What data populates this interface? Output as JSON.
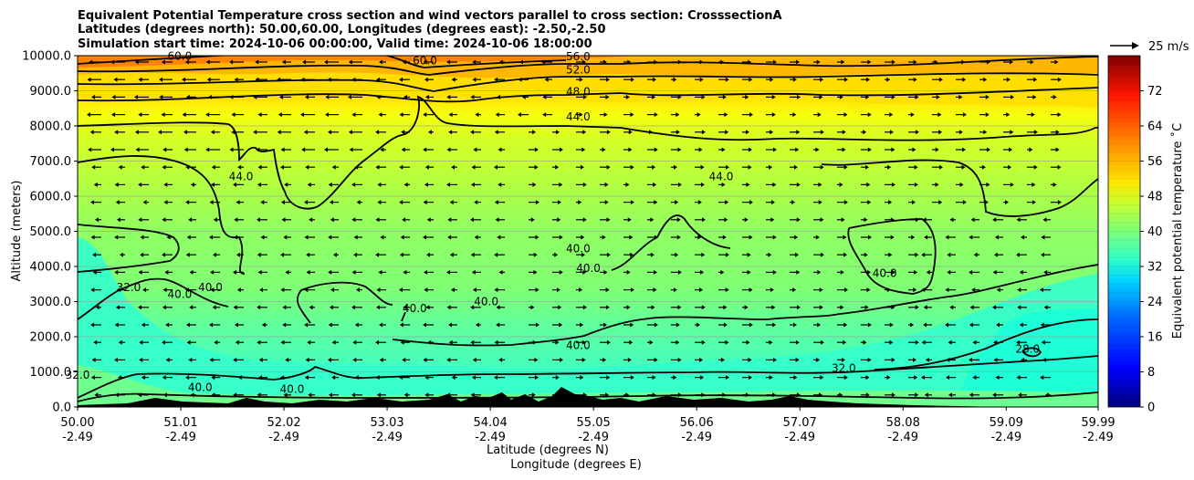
{
  "chart_data": {
    "type": "heatmap",
    "title_lines": [
      "Equivalent Potential Temperature cross section and wind vectors parallel to cross section: CrosssectionA",
      "Latitudes (degrees north): 50.00,60.00, Longitudes (degrees east): -2.50,-2.50",
      "Simulation start time: 2024-10-06 00:00:00, Valid time: 2024-10-06 18:00:00"
    ],
    "ylabel": "Altitude (meters)",
    "xlabel_line1": "Latitude (degrees N)",
    "xlabel_line2": "Longitude (degrees E)",
    "x_ticks": [
      {
        "lat": "50.00",
        "lon": "-2.49"
      },
      {
        "lat": "51.01",
        "lon": "-2.49"
      },
      {
        "lat": "52.02",
        "lon": "-2.49"
      },
      {
        "lat": "53.03",
        "lon": "-2.49"
      },
      {
        "lat": "54.04",
        "lon": "-2.49"
      },
      {
        "lat": "55.05",
        "lon": "-2.49"
      },
      {
        "lat": "56.06",
        "lon": "-2.49"
      },
      {
        "lat": "57.07",
        "lon": "-2.49"
      },
      {
        "lat": "58.08",
        "lon": "-2.49"
      },
      {
        "lat": "59.09",
        "lon": "-2.49"
      },
      {
        "lat": "59.99",
        "lon": "-2.49"
      }
    ],
    "y_ticks": [
      "0.0",
      "1000.0",
      "2000.0",
      "3000.0",
      "4000.0",
      "5000.0",
      "6000.0",
      "7000.0",
      "8000.0",
      "9000.0",
      "10000.0"
    ],
    "ylim": [
      0,
      10000
    ],
    "grid": "horizontal",
    "colorbar": {
      "label": "Equivalent potential temperature ˚C",
      "ticks": [
        "0",
        "8",
        "16",
        "24",
        "32",
        "40",
        "48",
        "56",
        "64",
        "72"
      ],
      "range": [
        0,
        80
      ]
    },
    "quiver_key": "25 m/s",
    "contour_labels": [
      {
        "text": "60.0",
        "lat": 51.0,
        "alt": 9880
      },
      {
        "text": "60.0",
        "lat": 53.4,
        "alt": 9750
      },
      {
        "text": "56.0",
        "lat": 54.9,
        "alt": 9870
      },
      {
        "text": "52.0",
        "lat": 54.9,
        "alt": 9500
      },
      {
        "text": "48.0",
        "lat": 54.9,
        "alt": 8870
      },
      {
        "text": "44.0",
        "lat": 54.9,
        "alt": 8150
      },
      {
        "text": "44.0",
        "lat": 51.6,
        "alt": 6450
      },
      {
        "text": "44.0",
        "lat": 56.3,
        "alt": 6450
      },
      {
        "text": "40.0",
        "lat": 54.9,
        "alt": 4400
      },
      {
        "text": "40.0",
        "lat": 55.0,
        "alt": 3850
      },
      {
        "text": "40.0",
        "lat": 51.3,
        "alt": 3300
      },
      {
        "text": "40.0",
        "lat": 51.0,
        "alt": 3100
      },
      {
        "text": "40.0",
        "lat": 54.0,
        "alt": 2900
      },
      {
        "text": "40.0",
        "lat": 53.3,
        "alt": 2700
      },
      {
        "text": "40.0",
        "lat": 54.9,
        "alt": 1650
      },
      {
        "text": "40.0",
        "lat": 57.9,
        "alt": 3700
      },
      {
        "text": "40.0",
        "lat": 51.2,
        "alt": 450
      },
      {
        "text": "40.0",
        "lat": 52.1,
        "alt": 400
      },
      {
        "text": "32.0",
        "lat": 50.5,
        "alt": 3300
      },
      {
        "text": "32.0",
        "lat": 57.5,
        "alt": 1000
      },
      {
        "text": "32.0",
        "lat": 50.0,
        "alt": 800
      },
      {
        "text": "28.0",
        "lat": 59.3,
        "alt": 1550
      }
    ],
    "colors": {
      "top_band": "#ff9a00",
      "upper": "#ffd200",
      "mid_upper": "#c8ff2e",
      "mid": "#8dff6a",
      "lower": "#38ffc8",
      "terrain": "#000000"
    }
  }
}
